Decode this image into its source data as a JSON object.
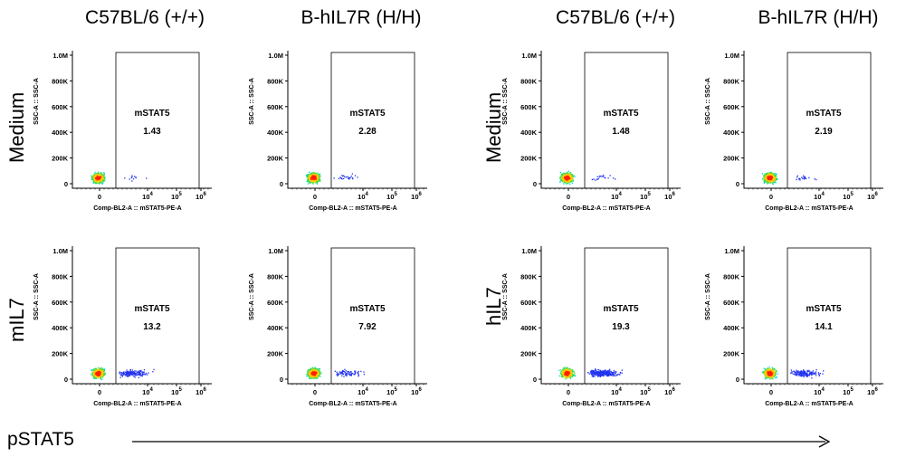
{
  "columns": [
    "C57BL/6 (+/+)",
    "B-hIL7R (H/H)",
    "C57BL/6 (+/+)",
    "B-hIL7R (H/H)"
  ],
  "row_labels": [
    "Medium",
    "mIL7",
    "Medium",
    "hIL7"
  ],
  "footer_label": "pSTAT5",
  "chart_data": {
    "type": "scatter",
    "xlabel": "Comp-BL2-A :: mSTAT5-PE-A",
    "ylabel": "SSC-A :: SSC-A",
    "y_ticks": [
      "0",
      "200K",
      "400K",
      "600K",
      "800K",
      "1.0M"
    ],
    "x_ticks": [
      "0",
      "10^4",
      "10^5",
      "10^6"
    ],
    "gate_label": "mSTAT5",
    "panels": [
      {
        "column": "C57BL/6 (+/+)",
        "condition": "Medium",
        "gate_percent": "1.43"
      },
      {
        "column": "B-hIL7R (H/H)",
        "condition": "Medium",
        "gate_percent": "2.28"
      },
      {
        "column": "C57BL/6 (+/+)",
        "condition": "Medium",
        "gate_percent": "1.48"
      },
      {
        "column": "B-hIL7R (H/H)",
        "condition": "Medium",
        "gate_percent": "2.19"
      },
      {
        "column": "C57BL/6 (+/+)",
        "condition": "mIL7",
        "gate_percent": "13.2"
      },
      {
        "column": "B-hIL7R (H/H)",
        "condition": "mIL7",
        "gate_percent": "7.92"
      },
      {
        "column": "C57BL/6 (+/+)",
        "condition": "hIL7",
        "gate_percent": "19.3"
      },
      {
        "column": "B-hIL7R (H/H)",
        "condition": "hIL7",
        "gate_percent": "14.1"
      }
    ]
  }
}
